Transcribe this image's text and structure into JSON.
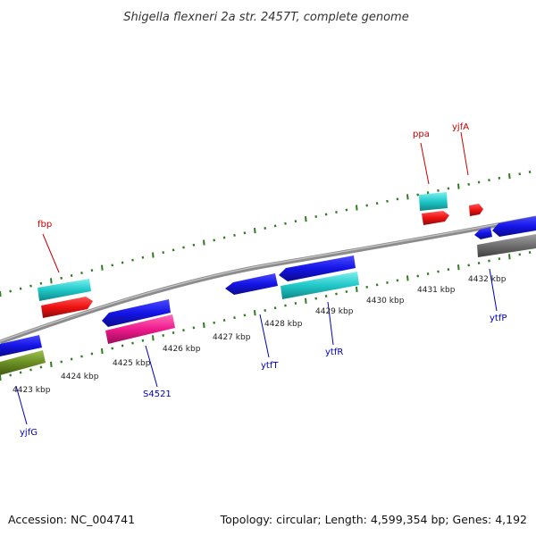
{
  "title": "Shigella flexneri 2a str. 2457T, complete genome",
  "footer": {
    "accession": "Accession: NC_004741",
    "summary": "Topology: circular; Length: 4,599,354 bp; Genes: 4,192"
  },
  "colors": {
    "backbone": "#8c8c8c",
    "tick": "#2e7d1e",
    "blue": "#1414e6",
    "red": "#ee1111",
    "cyan": "#20c8c8",
    "pink": "#ee1a8c",
    "olive": "#6b8e23",
    "gray": "#6e6e6e",
    "label_red": "#cc0000",
    "label_blue": "#0000bb"
  },
  "scale_labels": [
    "4423 kbp",
    "4424 kbp",
    "4425 kbp",
    "4426 kbp",
    "4427 kbp",
    "4428 kbp",
    "4429 kbp",
    "4430 kbp",
    "4431 kbp",
    "4432 kbp"
  ],
  "genes": [
    {
      "name": "fbp",
      "strand": "top"
    },
    {
      "name": "ppa",
      "strand": "top"
    },
    {
      "name": "yjfA",
      "strand": "top"
    },
    {
      "name": "yjfG",
      "strand": "bottom"
    },
    {
      "name": "S4521",
      "strand": "bottom"
    },
    {
      "name": "ytfT",
      "strand": "bottom"
    },
    {
      "name": "ytfR",
      "strand": "bottom"
    },
    {
      "name": "ytfP",
      "strand": "bottom"
    }
  ]
}
